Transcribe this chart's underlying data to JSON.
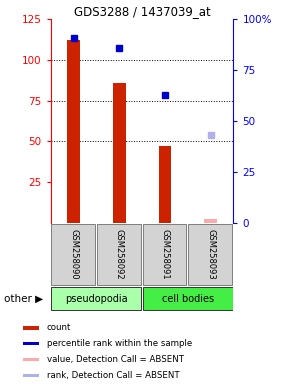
{
  "title": "GDS3288 / 1437039_at",
  "samples": [
    "GSM258090",
    "GSM258092",
    "GSM258091",
    "GSM258093"
  ],
  "bar_values": [
    112,
    86,
    47,
    null
  ],
  "bar_color": "#cc2200",
  "dot_values": [
    91,
    86,
    null,
    null
  ],
  "dot_color": "#0000cc",
  "absent_dot_values": [
    null,
    null,
    63,
    43
  ],
  "absent_dot_color": "#b0b0ee",
  "absent_bar_values": [
    null,
    null,
    47,
    2
  ],
  "absent_bar_color": "#ffaaaa",
  "blue_dot_present": [
    null,
    null,
    63,
    null
  ],
  "ylim_left": [
    0,
    125
  ],
  "ylim_right": [
    0,
    100
  ],
  "yticks_left": [
    25,
    50,
    75,
    100,
    125
  ],
  "yticks_right": [
    0,
    25,
    50,
    75,
    100
  ],
  "ytick_labels_right": [
    "0",
    "25",
    "50",
    "75",
    "100%"
  ],
  "group_label_pseudopodia": "pseudopodia",
  "group_label_cell_bodies": "cell bodies",
  "other_label": "other",
  "legend": [
    {
      "label": "count",
      "color": "#cc2200"
    },
    {
      "label": "percentile rank within the sample",
      "color": "#0000cc"
    },
    {
      "label": "value, Detection Call = ABSENT",
      "color": "#ffaaaa"
    },
    {
      "label": "rank, Detection Call = ABSENT",
      "color": "#b0b0ee"
    }
  ]
}
